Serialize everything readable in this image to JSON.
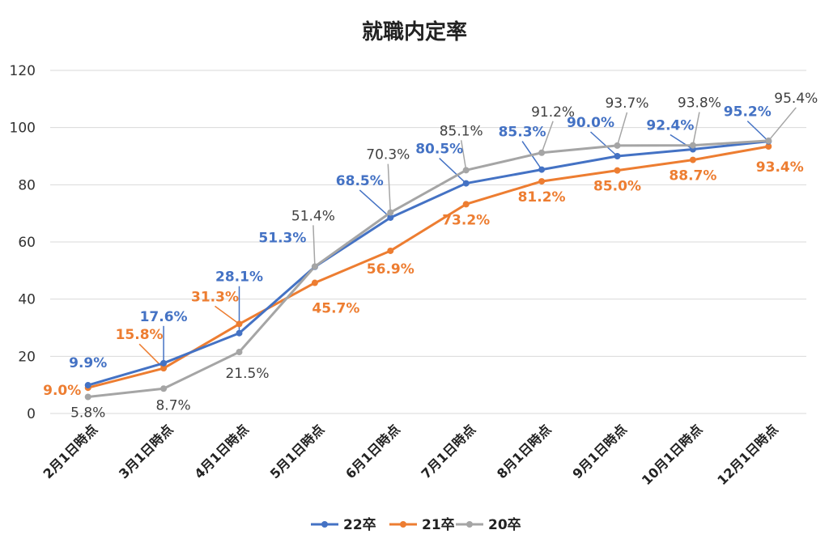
{
  "chart_data": {
    "type": "line",
    "title": "就職内定率",
    "categories": [
      "2月1日時点",
      "3月1日時点",
      "4月1日時点",
      "5月1日時点",
      "6月1日時点",
      "7月1日時点",
      "8月1日時点",
      "9月1日時点",
      "10月1日時点",
      "12月1日時点"
    ],
    "ylim": [
      0,
      120
    ],
    "yticks": [
      0,
      20,
      40,
      60,
      80,
      100,
      120
    ],
    "grid": true,
    "legend_position": "bottom",
    "series": [
      {
        "name": "22卒",
        "color": "#4472C4",
        "values": [
          9.9,
          17.6,
          28.1,
          51.3,
          68.5,
          80.5,
          85.3,
          90.0,
          92.4,
          95.2
        ],
        "labels": [
          "9.9%",
          "17.6%",
          "28.1%",
          "51.3%",
          "68.5%",
          "80.5%",
          "85.3%",
          "90.0%",
          "92.4%",
          "95.2%"
        ]
      },
      {
        "name": "21卒",
        "color": "#ED7D31",
        "values": [
          9.0,
          15.8,
          31.3,
          45.7,
          56.9,
          73.2,
          81.2,
          85.0,
          88.7,
          93.4
        ],
        "labels": [
          "9.0%",
          "15.8%",
          "31.3%",
          "45.7%",
          "56.9%",
          "73.2%",
          "81.2%",
          "85.0%",
          "88.7%",
          "93.4%"
        ]
      },
      {
        "name": "20卒",
        "color": "#A5A5A5",
        "values": [
          5.8,
          8.7,
          21.5,
          51.4,
          70.3,
          85.1,
          91.2,
          93.7,
          93.8,
          95.4
        ],
        "labels": [
          "5.8%",
          "8.7%",
          "21.5%",
          "51.4%",
          "70.3%",
          "85.1%",
          "91.2%",
          "93.7%",
          "93.8%",
          "95.4%"
        ],
        "label_color": "#404040"
      }
    ]
  }
}
